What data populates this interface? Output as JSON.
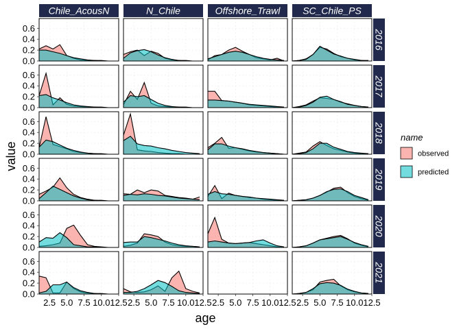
{
  "chart_data": {
    "type": "area",
    "xlabel": "age",
    "ylabel": "value",
    "xlim": [
      1,
      12.5
    ],
    "ylim": [
      0,
      0.78
    ],
    "x_ticks": [
      2.5,
      5.0,
      7.5,
      10.0,
      12.5
    ],
    "x_tick_labels": [
      "2.5",
      "5.0",
      "7.5",
      "10.0",
      "12.5"
    ],
    "y_ticks": [
      0.0,
      0.2,
      0.4,
      0.6
    ],
    "y_tick_labels": [
      "0.0",
      "0.2",
      "0.4",
      "0.6"
    ],
    "grid": true,
    "legend": {
      "title": "name",
      "position": "right",
      "entries": [
        {
          "label": "observed",
          "color": "#F8766D"
        },
        {
          "label": "predicted",
          "color": "#00BFC4"
        }
      ]
    },
    "colors": {
      "strip": "#212A4C",
      "observed": "#F8766D",
      "predicted": "#00BFC4"
    },
    "fleets": [
      "Chile_AcousN",
      "N_Chile",
      "Offshore_Trawl",
      "SC_Chile_PS"
    ],
    "years": [
      "2016",
      "2017",
      "2018",
      "2019",
      "2020",
      "2021"
    ],
    "x": [
      1,
      2,
      3,
      4,
      5,
      6,
      7,
      8,
      9,
      10,
      11,
      12
    ],
    "panels": [
      [
        {
          "observed": [
            0.22,
            0.28,
            0.22,
            0.3,
            0.1,
            0.05,
            0.02,
            0.01,
            0.01,
            0.0,
            0.0,
            0.0
          ],
          "predicted": [
            0.2,
            0.2,
            0.17,
            0.14,
            0.1,
            0.06,
            0.04,
            0.02,
            0.01,
            0.01,
            0.0,
            0.0
          ]
        },
        {
          "observed": [
            0.12,
            0.17,
            0.2,
            0.1,
            0.18,
            0.14,
            0.05,
            0.02,
            0.01,
            0.0,
            0.0,
            0.0
          ],
          "predicted": [
            0.05,
            0.15,
            0.19,
            0.21,
            0.17,
            0.11,
            0.06,
            0.03,
            0.01,
            0.01,
            0.0,
            0.0
          ]
        },
        {
          "observed": [
            0.02,
            0.1,
            0.12,
            0.2,
            0.25,
            0.18,
            0.12,
            0.06,
            0.04,
            0.02,
            0.05,
            0.0
          ],
          "predicted": [
            0.04,
            0.08,
            0.12,
            0.16,
            0.18,
            0.16,
            0.12,
            0.08,
            0.05,
            0.03,
            0.02,
            0.01
          ]
        },
        {
          "observed": [
            0.0,
            0.01,
            0.04,
            0.12,
            0.25,
            0.22,
            0.14,
            0.08,
            0.05,
            0.02,
            0.01,
            0.0
          ],
          "predicted": [
            0.0,
            0.01,
            0.03,
            0.12,
            0.27,
            0.2,
            0.13,
            0.09,
            0.05,
            0.03,
            0.01,
            0.01
          ]
        }
      ],
      [
        {
          "observed": [
            0.22,
            0.63,
            0.05,
            0.18,
            0.06,
            0.03,
            0.02,
            0.01,
            0.01,
            0.0,
            0.0,
            0.0
          ],
          "predicted": [
            0.22,
            0.24,
            0.18,
            0.14,
            0.09,
            0.05,
            0.03,
            0.02,
            0.01,
            0.01,
            0.0,
            0.0
          ]
        },
        {
          "observed": [
            0.05,
            0.3,
            0.15,
            0.46,
            0.08,
            0.03,
            0.02,
            0.01,
            0.01,
            0.0,
            0.0,
            0.0
          ],
          "predicted": [
            0.1,
            0.22,
            0.2,
            0.22,
            0.15,
            0.08,
            0.04,
            0.02,
            0.01,
            0.01,
            0.0,
            0.0
          ]
        },
        {
          "observed": [
            0.3,
            0.3,
            0.13,
            0.12,
            0.1,
            0.08,
            0.05,
            0.04,
            0.03,
            0.02,
            0.01,
            0.0
          ],
          "predicted": [
            0.14,
            0.14,
            0.13,
            0.12,
            0.1,
            0.08,
            0.06,
            0.05,
            0.04,
            0.03,
            0.02,
            0.01
          ]
        },
        {
          "observed": [
            0.0,
            0.02,
            0.05,
            0.12,
            0.18,
            0.17,
            0.15,
            0.1,
            0.07,
            0.04,
            0.02,
            0.01
          ],
          "predicted": [
            0.0,
            0.01,
            0.04,
            0.1,
            0.19,
            0.21,
            0.15,
            0.11,
            0.06,
            0.04,
            0.02,
            0.01
          ]
        }
      ],
      [
        {
          "observed": [
            0.12,
            0.69,
            0.18,
            0.14,
            0.1,
            0.05,
            0.03,
            0.02,
            0.01,
            0.0,
            0.0,
            0.0
          ],
          "predicted": [
            0.13,
            0.26,
            0.23,
            0.17,
            0.11,
            0.07,
            0.04,
            0.02,
            0.01,
            0.01,
            0.0,
            0.0
          ]
        },
        {
          "observed": [
            0.35,
            0.74,
            0.08,
            0.06,
            0.05,
            0.03,
            0.02,
            0.01,
            0.01,
            0.0,
            0.0,
            0.0
          ],
          "predicted": [
            0.25,
            0.33,
            0.19,
            0.16,
            0.15,
            0.12,
            0.1,
            0.07,
            0.05,
            0.03,
            0.02,
            0.01
          ]
        },
        {
          "observed": [
            0.12,
            0.2,
            0.31,
            0.11,
            0.12,
            0.09,
            0.06,
            0.04,
            0.03,
            0.02,
            0.01,
            0.0
          ],
          "predicted": [
            0.08,
            0.19,
            0.19,
            0.15,
            0.12,
            0.1,
            0.07,
            0.05,
            0.03,
            0.02,
            0.01,
            0.0
          ]
        },
        {
          "observed": [
            0.0,
            0.02,
            0.04,
            0.15,
            0.23,
            0.16,
            0.1,
            0.07,
            0.04,
            0.02,
            0.01,
            0.0
          ],
          "predicted": [
            0.0,
            0.01,
            0.03,
            0.1,
            0.2,
            0.2,
            0.13,
            0.09,
            0.05,
            0.03,
            0.02,
            0.01
          ]
        }
      ],
      [
        {
          "observed": [
            0.12,
            0.18,
            0.25,
            0.42,
            0.24,
            0.12,
            0.06,
            0.03,
            0.01,
            0.0,
            0.0,
            0.0
          ],
          "predicted": [
            0.04,
            0.15,
            0.27,
            0.21,
            0.15,
            0.09,
            0.05,
            0.02,
            0.01,
            0.01,
            0.0,
            0.0
          ]
        },
        {
          "observed": [
            0.13,
            0.12,
            0.2,
            0.15,
            0.2,
            0.18,
            0.1,
            0.08,
            0.06,
            0.05,
            0.03,
            0.07
          ],
          "predicted": [
            0.1,
            0.12,
            0.11,
            0.13,
            0.12,
            0.1,
            0.09,
            0.07,
            0.05,
            0.04,
            0.03,
            0.02
          ]
        },
        {
          "observed": [
            0.08,
            0.28,
            0.04,
            0.14,
            0.1,
            0.08,
            0.06,
            0.05,
            0.03,
            0.02,
            0.01,
            0.0
          ],
          "predicted": [
            0.12,
            0.17,
            0.13,
            0.12,
            0.1,
            0.08,
            0.07,
            0.05,
            0.04,
            0.03,
            0.02,
            0.01
          ]
        },
        {
          "observed": [
            0.0,
            0.01,
            0.02,
            0.05,
            0.1,
            0.16,
            0.23,
            0.25,
            0.15,
            0.08,
            0.04,
            0.01
          ],
          "predicted": [
            0.0,
            0.01,
            0.02,
            0.05,
            0.1,
            0.17,
            0.21,
            0.22,
            0.17,
            0.1,
            0.06,
            0.02
          ]
        }
      ],
      [
        {
          "observed": [
            0.02,
            0.03,
            0.05,
            0.08,
            0.35,
            0.41,
            0.22,
            0.05,
            0.02,
            0.01,
            0.0,
            0.0
          ],
          "predicted": [
            0.1,
            0.18,
            0.17,
            0.27,
            0.18,
            0.05,
            0.03,
            0.01,
            0.01,
            0.0,
            0.0,
            0.0
          ]
        },
        {
          "observed": [
            0.02,
            0.04,
            0.08,
            0.25,
            0.23,
            0.2,
            0.1,
            0.05,
            0.03,
            0.02,
            0.02,
            0.01
          ],
          "predicted": [
            0.09,
            0.1,
            0.1,
            0.2,
            0.18,
            0.15,
            0.12,
            0.08,
            0.05,
            0.03,
            0.02,
            0.01
          ]
        },
        {
          "observed": [
            0.25,
            0.55,
            0.15,
            0.08,
            0.07,
            0.08,
            0.09,
            0.07,
            0.05,
            0.03,
            0.01,
            0.0
          ],
          "predicted": [
            0.1,
            0.12,
            0.1,
            0.08,
            0.07,
            0.08,
            0.09,
            0.12,
            0.14,
            0.08,
            0.03,
            0.01
          ]
        },
        {
          "observed": [
            0.0,
            0.01,
            0.03,
            0.08,
            0.14,
            0.17,
            0.2,
            0.22,
            0.16,
            0.08,
            0.04,
            0.01
          ],
          "predicted": [
            0.0,
            0.01,
            0.03,
            0.08,
            0.14,
            0.16,
            0.18,
            0.2,
            0.15,
            0.09,
            0.05,
            0.02
          ]
        }
      ],
      [
        {
          "observed": [
            0.33,
            0.3,
            0.02,
            0.02,
            0.22,
            0.1,
            0.04,
            0.02,
            0.01,
            0.0,
            0.0,
            0.0
          ],
          "predicted": [
            0.02,
            0.05,
            0.17,
            0.17,
            0.22,
            0.12,
            0.06,
            0.03,
            0.01,
            0.01,
            0.0,
            0.0
          ]
        },
        {
          "observed": [
            0.1,
            0.04,
            0.03,
            0.04,
            0.08,
            0.15,
            0.05,
            0.3,
            0.42,
            0.1,
            0.05,
            0.02
          ],
          "predicted": [
            0.03,
            0.03,
            0.05,
            0.1,
            0.17,
            0.25,
            0.21,
            0.14,
            0.06,
            0.03,
            0.02,
            0.01
          ]
        },
        {
          "observed": [],
          "predicted": []
        },
        {
          "observed": [
            0.0,
            0.01,
            0.03,
            0.08,
            0.22,
            0.25,
            0.27,
            0.15,
            0.08,
            0.04,
            0.02,
            0.01
          ],
          "predicted": [
            0.0,
            0.01,
            0.03,
            0.1,
            0.19,
            0.21,
            0.2,
            0.16,
            0.09,
            0.05,
            0.02,
            0.01
          ]
        }
      ]
    ]
  }
}
